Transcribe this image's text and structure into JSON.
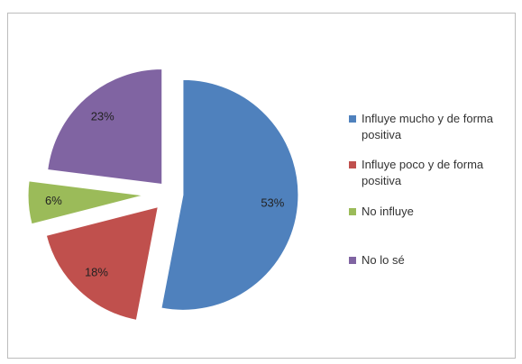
{
  "chart_data": {
    "type": "pie",
    "title": "",
    "exploded": true,
    "legend_position": "right",
    "slices": [
      {
        "label": "Influye mucho y de forma positiva",
        "value": 53,
        "display": "53%",
        "color": "#4f81bd"
      },
      {
        "label": "Influye poco y de forma positiva",
        "value": 18,
        "display": "18%",
        "color": "#c0504d"
      },
      {
        "label": "No influye",
        "value": 6,
        "display": "6%",
        "color": "#9bbb59"
      },
      {
        "label": "No lo sé",
        "value": 23,
        "display": "23%",
        "color": "#8064a2"
      }
    ]
  }
}
